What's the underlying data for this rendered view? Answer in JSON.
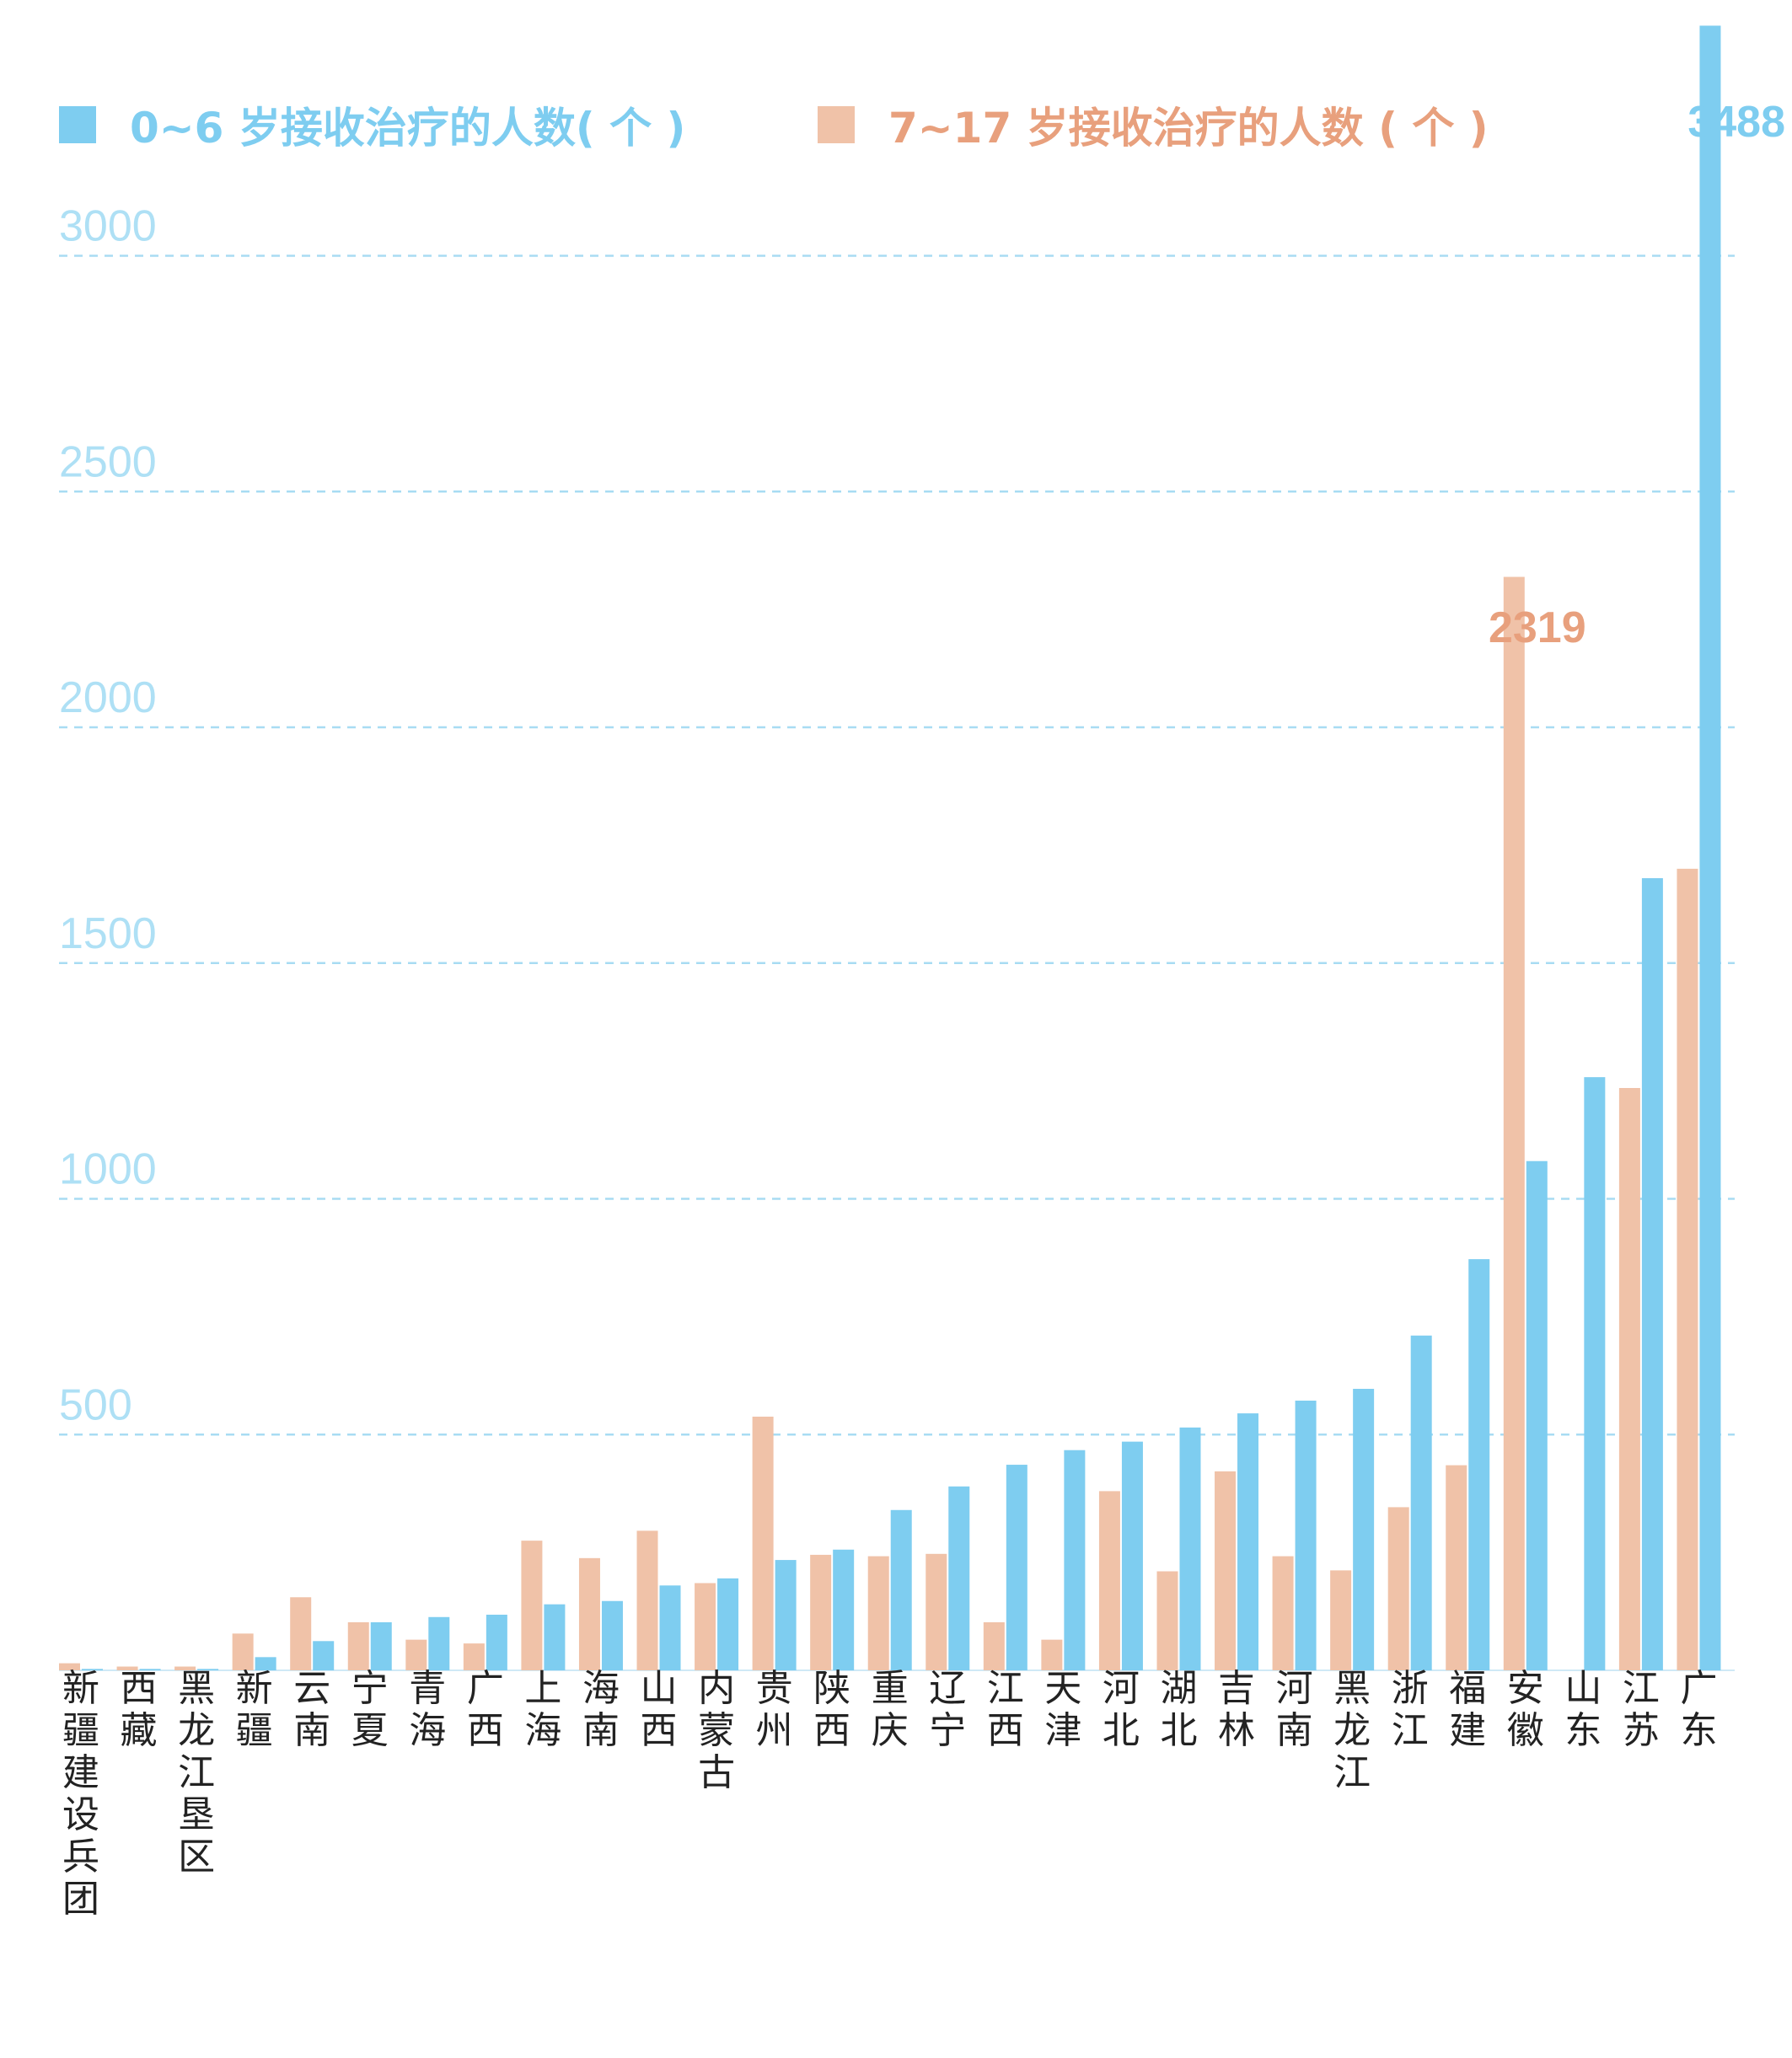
{
  "colors": {
    "series_0_6": "#7ecdf0",
    "series_7_17": "#f0c2a8",
    "callout_0_6": "#7ecdf0",
    "callout_7_17": "#e8a07d",
    "grid": "#a8dcf3",
    "axis": "#cfe9f6"
  },
  "legend": {
    "items": [
      {
        "label": "0~6 岁接收治疗的人数( 个 )",
        "color": "#7ecdf0"
      },
      {
        "label": "7~17 岁接收治疗的人数 ( 个 )",
        "color": "#f0c2a8"
      }
    ]
  },
  "callouts": {
    "max_0_6": "3488",
    "max_7_17": "2319"
  },
  "chart_data": {
    "type": "bar",
    "title": "",
    "xlabel": "",
    "ylabel": "",
    "ylim": [
      0,
      3550
    ],
    "yticks": [
      500,
      1000,
      1500,
      2000,
      2500,
      3000
    ],
    "grid": true,
    "legend_position": "top",
    "categories": [
      "新疆建设兵团",
      "西藏",
      "黑龙江垦区",
      "新疆",
      "云南",
      "宁夏",
      "青海",
      "广西",
      "上海",
      "海南",
      "山西",
      "内蒙古",
      "贵州",
      "陕西",
      "重庆",
      "辽宁",
      "江西",
      "天津",
      "河北",
      "湖北",
      "吉林",
      "河南",
      "黑龙江",
      "浙江",
      "福建",
      "安徽",
      "山东",
      "江苏",
      "广东"
    ],
    "series": [
      {
        "name": "7~17 岁接收治疗的人数 ( 个 )",
        "values": [
          15,
          8,
          8,
          78,
          155,
          102,
          65,
          57,
          275,
          238,
          296,
          185,
          538,
          245,
          242,
          247,
          102,
          65,
          380,
          210,
          422,
          242,
          212,
          346,
          435,
          2319,
          0,
          1235,
          1700
        ]
      },
      {
        "name": "0~6 岁接收治疗的人数( 个 )",
        "values": [
          3,
          3,
          3,
          28,
          62,
          102,
          113,
          118,
          140,
          147,
          180,
          195,
          234,
          256,
          340,
          390,
          436,
          467,
          485,
          515,
          545,
          572,
          597,
          710,
          872,
          1080,
          1258,
          1680,
          3488
        ]
      }
    ]
  }
}
